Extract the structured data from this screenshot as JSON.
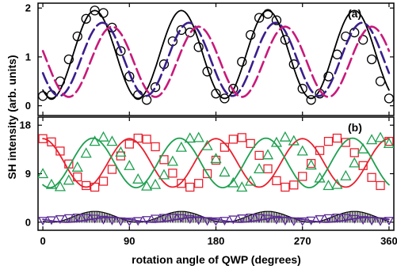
{
  "chart_data": [
    {
      "type": "line",
      "panel_label": "(a)",
      "xlim": [
        -5,
        365
      ],
      "ylim": [
        -0.2,
        2.1
      ],
      "yticks": [
        0,
        1,
        2
      ],
      "series": [
        {
          "kind": "data",
          "marker": "circle",
          "color": "#000000",
          "mean": 1.05,
          "amp": 0.9,
          "phase_deg": 54,
          "x": [
            0,
            9,
            18,
            27,
            36,
            45,
            54,
            63,
            72,
            81,
            90,
            99,
            108,
            117,
            126,
            135,
            144,
            153,
            162,
            171,
            180,
            189,
            198,
            207,
            216,
            225,
            234,
            243,
            252,
            261,
            270,
            279,
            288,
            297,
            306,
            315,
            324,
            333,
            342,
            351,
            360
          ],
          "y": [
            0.2,
            0.22,
            0.5,
            0.95,
            1.42,
            1.78,
            1.95,
            1.9,
            1.6,
            1.12,
            0.6,
            0.22,
            0.12,
            0.38,
            0.85,
            1.32,
            1.55,
            1.5,
            1.2,
            0.7,
            0.25,
            0.15,
            0.35,
            0.9,
            1.45,
            1.8,
            1.88,
            1.75,
            1.35,
            0.85,
            0.35,
            0.12,
            0.25,
            0.6,
            1.05,
            1.42,
            1.5,
            1.35,
            0.95,
            0.5,
            0.15
          ]
        },
        {
          "kind": "fit",
          "color": "#000000",
          "dash": "",
          "mean": 1.05,
          "amp": 0.9,
          "phase_deg": 54
        },
        {
          "kind": "fit",
          "color": "#3a1e8c",
          "dash": "14,6",
          "mean": 0.95,
          "amp": 0.75,
          "phase_deg": 62
        },
        {
          "kind": "fit",
          "color": "#c8197b",
          "dash": "14,6",
          "mean": 0.9,
          "amp": 0.72,
          "phase_deg": 72
        }
      ]
    },
    {
      "type": "line",
      "panel_label": "(b)",
      "xlim": [
        -5,
        365
      ],
      "ylim": [
        -1.5,
        19.5
      ],
      "yticks": [
        0,
        9,
        18
      ],
      "xticks": [
        0,
        90,
        180,
        270,
        360
      ],
      "xlabel": "rotation angle of QWP (degrees)",
      "series": [
        {
          "kind": "data",
          "marker": "square",
          "color": "#e8212f",
          "mean": 11.0,
          "amp": 4.5,
          "phase_deg": 0,
          "x": [
            0,
            9,
            18,
            27,
            36,
            45,
            54,
            63,
            72,
            81,
            90,
            99,
            108,
            117,
            126,
            135,
            144,
            153,
            162,
            171,
            180,
            189,
            198,
            207,
            216,
            225,
            234,
            243,
            252,
            261,
            270,
            279,
            288,
            297,
            306,
            315,
            324,
            333,
            342,
            351,
            360
          ],
          "y": [
            15.5,
            14.9,
            13.2,
            10.8,
            8.4,
            6.8,
            6.5,
            7.6,
            9.8,
            12.3,
            14.5,
            15.6,
            15.4,
            14.0,
            11.6,
            9.1,
            7.2,
            6.5,
            7.2,
            9.0,
            11.5,
            13.9,
            15.4,
            15.7,
            14.6,
            12.4,
            9.9,
            7.7,
            6.5,
            6.9,
            8.5,
            10.9,
            13.3,
            15.0,
            15.6,
            14.8,
            12.9,
            10.5,
            8.3,
            6.8,
            15.0
          ]
        },
        {
          "kind": "data",
          "marker": "triangle",
          "color": "#1ea050",
          "mean": 11.0,
          "amp": 4.6,
          "phase_deg": 52,
          "x": [
            0,
            9,
            18,
            27,
            36,
            45,
            54,
            63,
            72,
            81,
            90,
            99,
            108,
            117,
            126,
            135,
            144,
            153,
            162,
            171,
            180,
            189,
            198,
            207,
            216,
            225,
            234,
            243,
            252,
            261,
            270,
            279,
            288,
            297,
            306,
            315,
            324,
            333,
            342,
            351,
            360
          ],
          "y": [
            9.0,
            7.0,
            6.6,
            7.8,
            10.2,
            12.8,
            15.0,
            15.8,
            15.0,
            13.0,
            10.5,
            8.0,
            6.7,
            7.0,
            8.8,
            11.3,
            13.9,
            15.6,
            15.7,
            14.2,
            11.8,
            9.3,
            7.3,
            6.5,
            7.6,
            9.9,
            12.5,
            14.8,
            15.8,
            15.1,
            13.2,
            10.6,
            8.2,
            6.8,
            7.0,
            8.6,
            11.0,
            13.6,
            15.3,
            15.7,
            14.6
          ]
        },
        {
          "kind": "fill",
          "color": "#000000",
          "mean": 1.0,
          "amp": 1.0,
          "phase_deg": 54
        },
        {
          "kind": "data",
          "marker": "invtriangle",
          "color": "#5a2a96",
          "mean": 0.45,
          "amp": 0.45,
          "phase_deg": 70,
          "x": [
            0,
            9,
            18,
            27,
            36,
            45,
            54,
            63,
            72,
            81,
            90,
            99,
            108,
            117,
            126,
            135,
            144,
            153,
            162,
            171,
            180,
            189,
            198,
            207,
            216,
            225,
            234,
            243,
            252,
            261,
            270,
            279,
            288,
            297,
            306,
            315,
            324,
            333,
            342,
            351,
            360
          ],
          "y": [
            0.3,
            0.4,
            0.6,
            0.8,
            0.9,
            0.85,
            0.7,
            0.5,
            0.35,
            0.2,
            0.15,
            0.25,
            0.45,
            0.7,
            0.85,
            0.9,
            0.8,
            0.6,
            0.4,
            0.25,
            0.2,
            0.3,
            0.55,
            0.75,
            0.9,
            0.85,
            0.7,
            0.5,
            0.3,
            0.2,
            0.2,
            0.35,
            0.6,
            0.8,
            0.9,
            0.85,
            0.65,
            0.45,
            0.3,
            0.2,
            0.3
          ]
        }
      ]
    }
  ],
  "shared_ylabel": "SH intensity (arb. units)"
}
